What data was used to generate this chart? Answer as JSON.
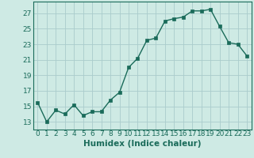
{
  "x": [
    0,
    1,
    2,
    3,
    4,
    5,
    6,
    7,
    8,
    9,
    10,
    11,
    12,
    13,
    14,
    15,
    16,
    17,
    18,
    19,
    20,
    21,
    22,
    23
  ],
  "y": [
    15.5,
    13.0,
    14.5,
    14.0,
    15.2,
    13.8,
    14.3,
    14.3,
    15.8,
    16.8,
    20.0,
    21.2,
    23.5,
    23.8,
    26.0,
    26.3,
    26.5,
    27.3,
    27.3,
    27.5,
    25.3,
    23.2,
    23.0,
    21.5
  ],
  "line_color": "#1a6b5a",
  "marker_color": "#1a6b5a",
  "bg_color": "#ceeae4",
  "grid_color": "#aacccc",
  "xlabel": "Humidex (Indice chaleur)",
  "ylim": [
    12,
    28.5
  ],
  "xlim": [
    -0.5,
    23.5
  ],
  "yticks": [
    13,
    15,
    17,
    19,
    21,
    23,
    25,
    27
  ],
  "xticks": [
    0,
    1,
    2,
    3,
    4,
    5,
    6,
    7,
    8,
    9,
    10,
    11,
    12,
    13,
    14,
    15,
    16,
    17,
    18,
    19,
    20,
    21,
    22,
    23
  ],
  "xlabel_fontsize": 7.5,
  "tick_fontsize": 6.5,
  "line_width": 1.0,
  "marker_size": 2.5
}
